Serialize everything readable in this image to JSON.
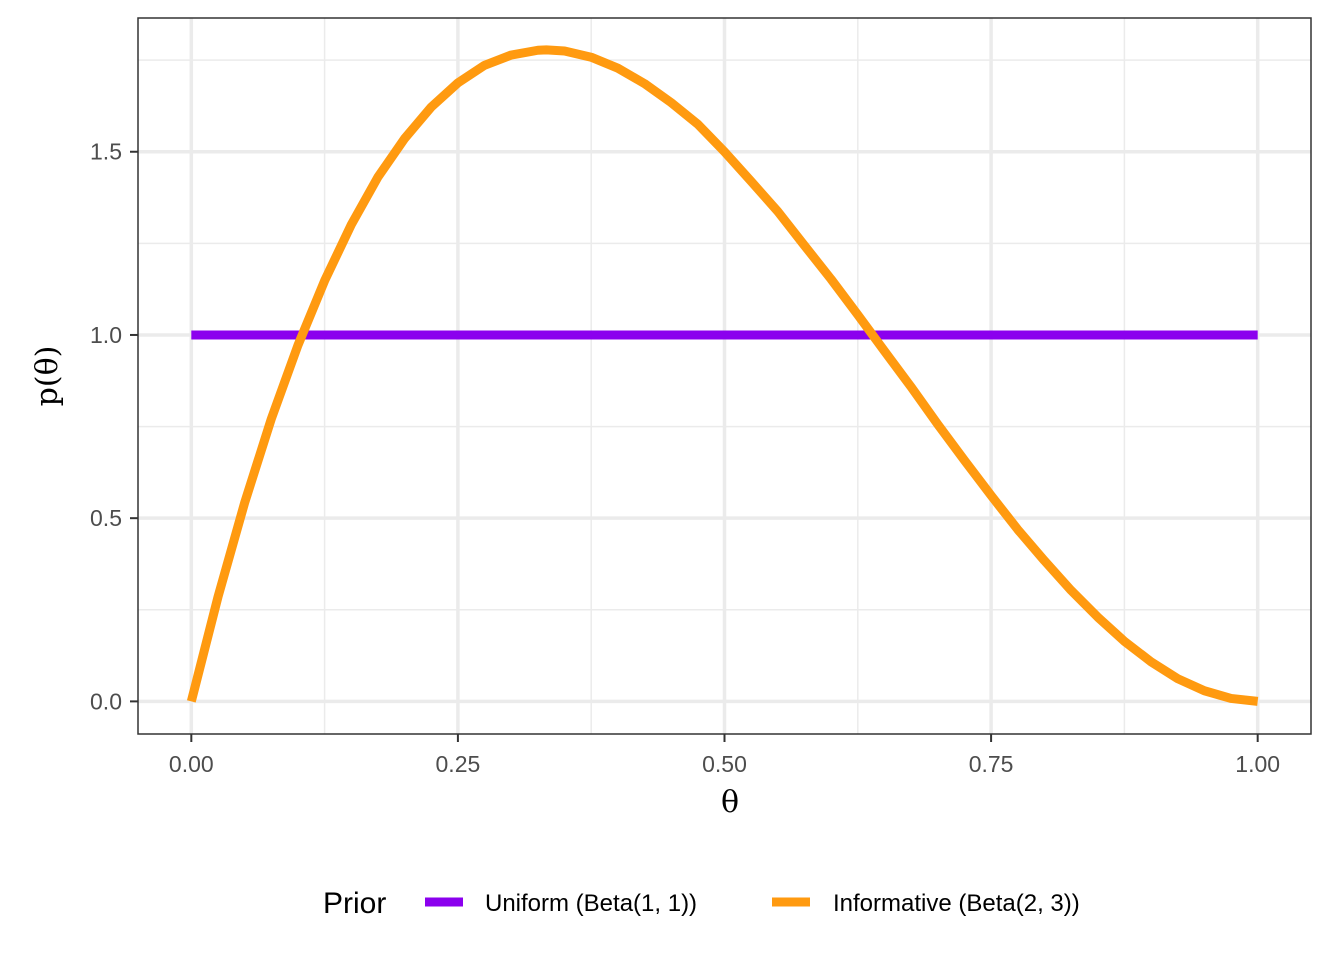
{
  "chart_data": {
    "type": "line",
    "title": "",
    "xlabel": "θ",
    "ylabel": "p(θ)",
    "xlim": [
      -0.05,
      1.05
    ],
    "ylim": [
      -0.089,
      1.865
    ],
    "x_ticks": [
      0.0,
      0.25,
      0.5,
      0.75,
      1.0
    ],
    "x_tick_labels": [
      "0.00",
      "0.25",
      "0.50",
      "0.75",
      "1.00"
    ],
    "y_ticks": [
      0.0,
      0.5,
      1.0,
      1.5
    ],
    "y_tick_labels": [
      "0.0",
      "0.5",
      "1.0",
      "1.5"
    ],
    "grid": true,
    "legend": {
      "title": "Prior",
      "position": "bottom"
    },
    "series": [
      {
        "name": "Uniform (Beta(1, 1))",
        "color": "#8B00EE",
        "x": [
          0.0,
          1.0
        ],
        "y": [
          1.0,
          1.0
        ]
      },
      {
        "name": "Informative (Beta(2, 3))",
        "color": "#FF9A10",
        "x": [
          0.0,
          0.025,
          0.05,
          0.075,
          0.1,
          0.125,
          0.15,
          0.175,
          0.2,
          0.225,
          0.25,
          0.275,
          0.3,
          0.325,
          0.333,
          0.35,
          0.375,
          0.4,
          0.425,
          0.45,
          0.475,
          0.5,
          0.525,
          0.55,
          0.575,
          0.6,
          0.625,
          0.65,
          0.675,
          0.7,
          0.725,
          0.75,
          0.775,
          0.8,
          0.825,
          0.85,
          0.875,
          0.9,
          0.925,
          0.95,
          0.975,
          1.0
        ],
        "y": [
          0.0,
          0.285,
          0.542,
          0.771,
          0.972,
          1.148,
          1.301,
          1.431,
          1.536,
          1.622,
          1.688,
          1.736,
          1.764,
          1.777,
          1.778,
          1.775,
          1.758,
          1.728,
          1.686,
          1.634,
          1.575,
          1.5,
          1.419,
          1.337,
          1.244,
          1.152,
          1.055,
          0.956,
          0.858,
          0.756,
          0.658,
          0.562,
          0.469,
          0.384,
          0.303,
          0.23,
          0.164,
          0.108,
          0.062,
          0.029,
          0.008,
          0.0
        ]
      }
    ]
  }
}
